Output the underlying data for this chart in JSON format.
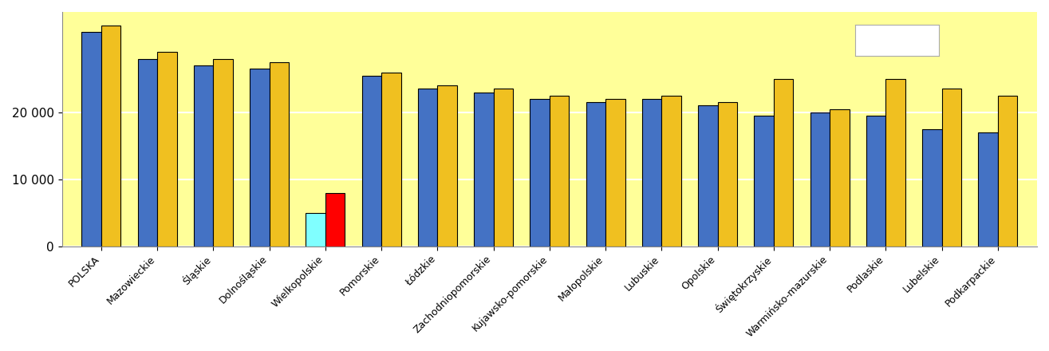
{
  "categories": [
    "POLSKA",
    "Mazowieckie",
    "Śląskie",
    "Dolnośląskie",
    "Wielkopolskie",
    "Pomorskie",
    "Łódzkie",
    "Zachodniopomorskie",
    "Kujawsko-pomorskie",
    "Małopolskie",
    "Lubuskie",
    "Opolskie",
    "Świętokrzyskie",
    "Warmińsko-mazurskie",
    "Podlaskie",
    "Lubelskie",
    "Podkarpackie"
  ],
  "series1_values": [
    32000,
    28000,
    27000,
    26500,
    5000,
    25500,
    23500,
    23000,
    22000,
    21500,
    22000,
    21000,
    19500,
    20000,
    19500,
    17500,
    17000
  ],
  "series2_values": [
    33000,
    29000,
    28000,
    27500,
    8000,
    26000,
    24000,
    23500,
    22500,
    22000,
    22500,
    21500,
    25000,
    20500,
    25000,
    23500,
    22500
  ],
  "series1_color": "#4472C4",
  "series2_color": "#F0C020",
  "wielkopolskie_s1_color": "#80FFFF",
  "wielkopolskie_s2_color": "#FF0000",
  "plot_background": "#FFFF99",
  "bar_edge_color": "#000000",
  "ylim": [
    0,
    35000
  ],
  "yticks": [
    0,
    10000,
    20000
  ],
  "ytick_labels": [
    "0",
    "10 000",
    "20 000"
  ],
  "bar_width": 0.35,
  "figsize": [
    13.15,
    4.4
  ],
  "dpi": 100
}
